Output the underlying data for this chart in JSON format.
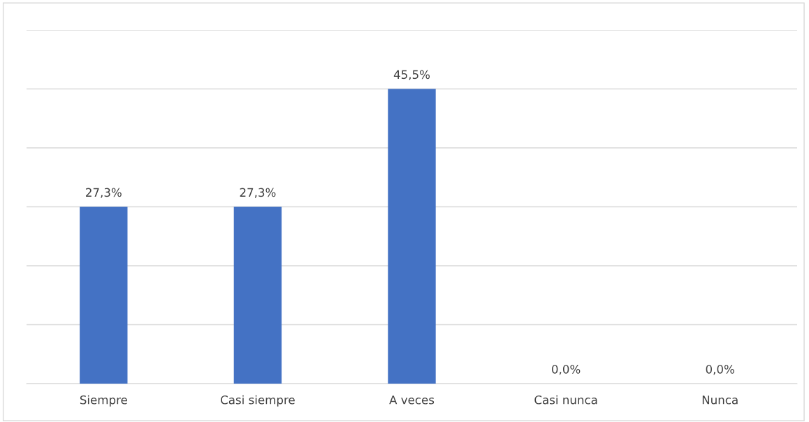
{
  "chart_data": {
    "type": "bar",
    "categories": [
      "Siempre",
      "Casi siempre",
      "A veces",
      "Casi nunca",
      "Nunca"
    ],
    "values": [
      27.3,
      27.3,
      45.5,
      0.0,
      0.0
    ],
    "value_labels": [
      "27,3%",
      "27,3%",
      "45,5%",
      "0,0%",
      "0,0%"
    ],
    "color": "#4472c4",
    "ylim": [
      0,
      54.6
    ],
    "yticks": [
      {
        "value": 0,
        "label": null
      },
      {
        "value": 9.1,
        "label": null
      },
      {
        "value": 18.2,
        "label": null
      },
      {
        "value": 27.3,
        "label": null
      },
      {
        "value": 36.4,
        "label": null
      },
      {
        "value": 45.5,
        "label": null
      },
      {
        "value": 54.6,
        "label": null
      }
    ],
    "grid": "y",
    "tick_labels": "x"
  }
}
